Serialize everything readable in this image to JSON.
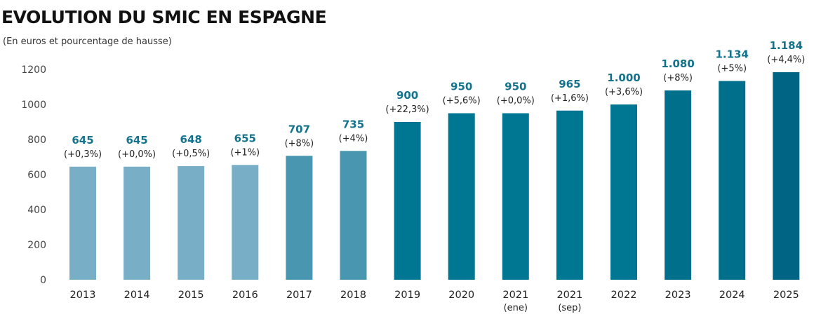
{
  "chart_data": {
    "type": "bar",
    "title": "EVOLUTION DU SMIC EN ESPAGNE",
    "subtitle": "(En euros et pourcentage de hausse)",
    "xlabel": "",
    "ylabel": "",
    "ylim": [
      0,
      1200
    ],
    "yticks": [
      "0",
      "200",
      "400",
      "600",
      "800",
      "1000",
      "1200"
    ],
    "grid": false,
    "categories": [
      {
        "line1": "2013",
        "line2": ""
      },
      {
        "line1": "2014",
        "line2": ""
      },
      {
        "line1": "2015",
        "line2": ""
      },
      {
        "line1": "2016",
        "line2": ""
      },
      {
        "line1": "2017",
        "line2": ""
      },
      {
        "line1": "2018",
        "line2": ""
      },
      {
        "line1": "2019",
        "line2": ""
      },
      {
        "line1": "2020",
        "line2": ""
      },
      {
        "line1": "2021",
        "line2": "(ene)"
      },
      {
        "line1": "2021",
        "line2": "(sep)"
      },
      {
        "line1": "2022",
        "line2": ""
      },
      {
        "line1": "2023",
        "line2": ""
      },
      {
        "line1": "2024",
        "line2": ""
      },
      {
        "line1": "2025",
        "line2": ""
      }
    ],
    "values": [
      645,
      645,
      648,
      655,
      707,
      735,
      900,
      950,
      950,
      965,
      1000,
      1080,
      1134,
      1184
    ],
    "value_labels": [
      "645",
      "645",
      "648",
      "655",
      "707",
      "735",
      "900",
      "950",
      "950",
      "965",
      "1.000",
      "1.080",
      "1.134",
      "1.184"
    ],
    "pct_labels": [
      "(+0,3%)",
      "(+0,0%)",
      "(+0,5%)",
      "(+1%)",
      "(+8%)",
      "(+4%)",
      "(+22,3%)",
      "(+5,6%)",
      "(+0,0%)",
      "(+1,6%)",
      "(+3,6%)",
      "(+8%)",
      "(+5%)",
      "(+4,4%)"
    ],
    "bar_colors": [
      "#78afc7",
      "#78afc7",
      "#78afc7",
      "#78afc7",
      "#4896af",
      "#4896af",
      "#007792",
      "#007792",
      "#007792",
      "#007792",
      "#007792",
      "#006f8c",
      "#006f8c",
      "#006584"
    ],
    "value_label_color": "#14738c"
  }
}
